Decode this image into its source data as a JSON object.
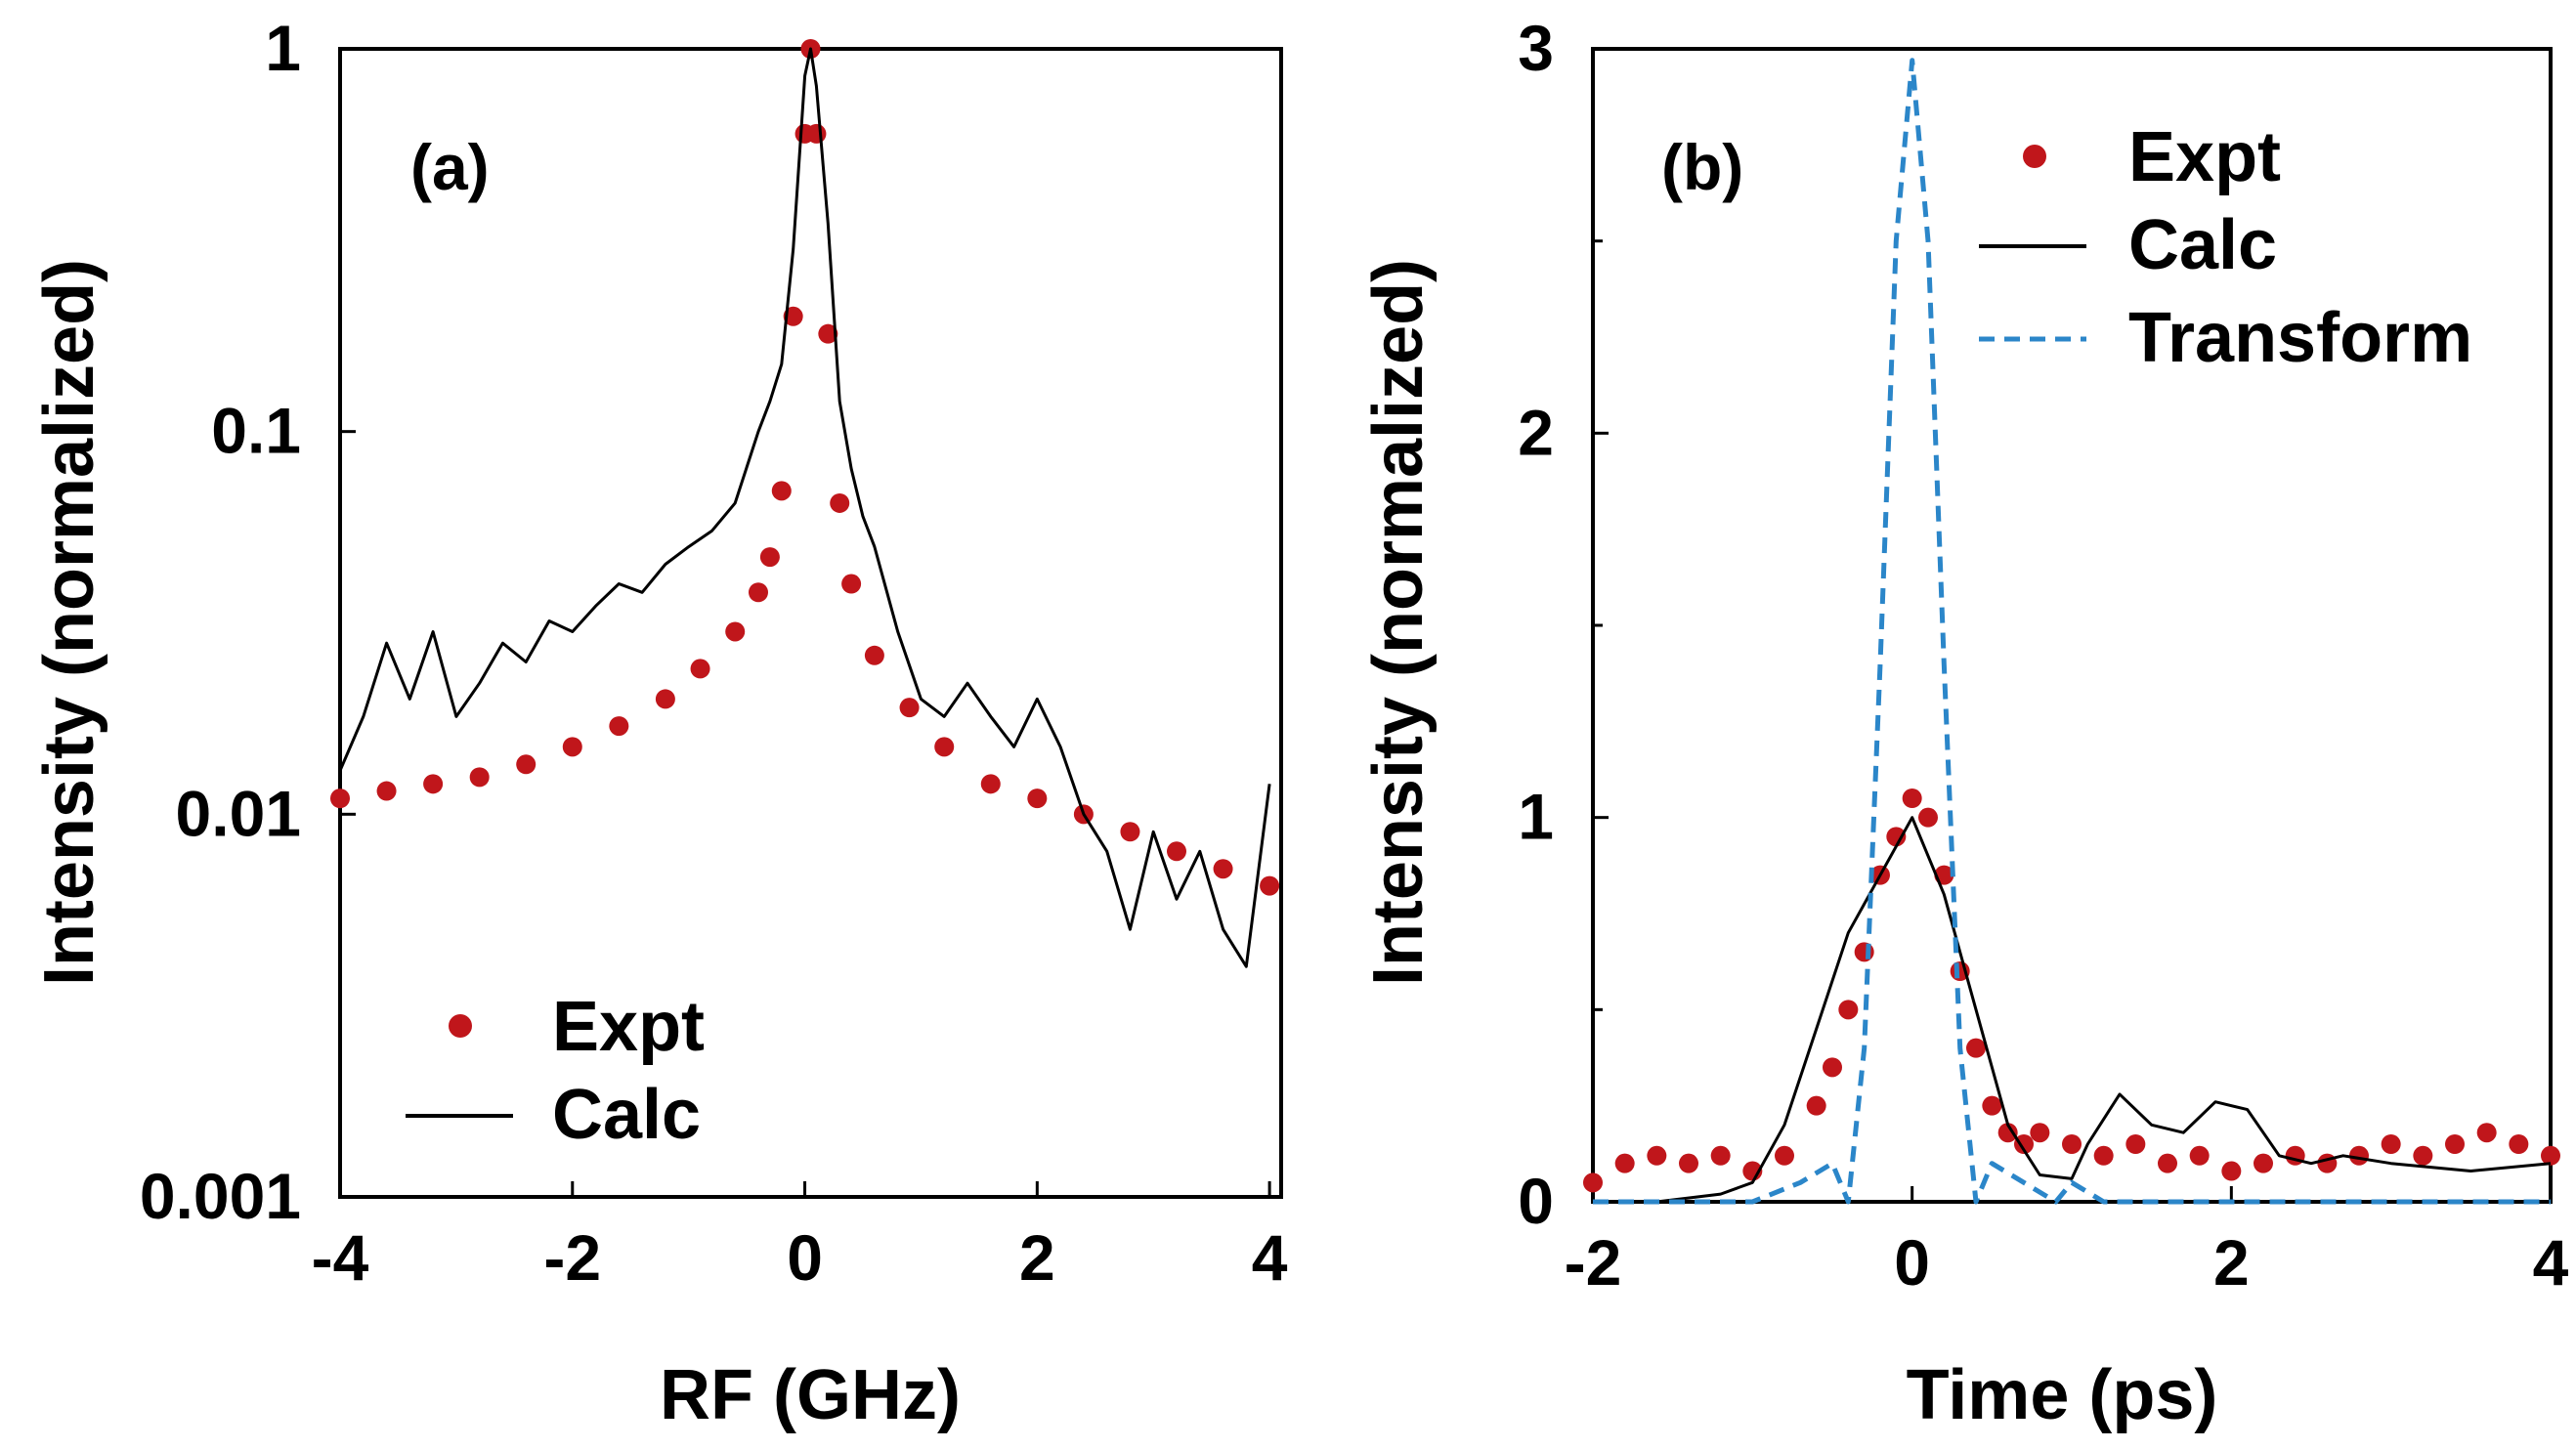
{
  "colors": {
    "expt": "#c0161b",
    "calc": "#000000",
    "transform": "#2b86c9"
  },
  "chart_data": [
    {
      "type": "line",
      "panel_label": "(a)",
      "xlabel": "RF (GHz)",
      "ylabel": "Intensity (normalized)",
      "xlim": [
        -4,
        4.1
      ],
      "ylim": [
        0.001,
        1
      ],
      "yscale": "log",
      "xticks": [
        -4,
        -2,
        0,
        2,
        4
      ],
      "xtick_labels": [
        "-4",
        "-2",
        "0",
        "2",
        "4"
      ],
      "yticks": [
        1,
        0.1,
        0.01,
        0.001
      ],
      "ytick_labels": [
        "1",
        "0.1",
        "0.01",
        "0.001"
      ],
      "legend_position": "bottom-left",
      "series": [
        {
          "name": "Expt",
          "style": "markers",
          "color": "#c0161b",
          "x": [
            -4.0,
            -3.6,
            -3.2,
            -2.8,
            -2.4,
            -2.0,
            -1.6,
            -1.2,
            -0.9,
            -0.6,
            -0.4,
            -0.3,
            -0.2,
            -0.1,
            0.0,
            0.05,
            0.1,
            0.2,
            0.3,
            0.4,
            0.6,
            0.9,
            1.2,
            1.6,
            2.0,
            2.4,
            2.8,
            3.2,
            3.6,
            4.0
          ],
          "y": [
            0.011,
            0.0115,
            0.012,
            0.0125,
            0.0135,
            0.015,
            0.017,
            0.02,
            0.024,
            0.03,
            0.038,
            0.047,
            0.07,
            0.2,
            0.6,
            1.0,
            0.6,
            0.18,
            0.065,
            0.04,
            0.026,
            0.019,
            0.015,
            0.012,
            0.011,
            0.01,
            0.009,
            0.008,
            0.0072,
            0.0065
          ]
        },
        {
          "name": "Calc",
          "style": "line",
          "color": "#000000",
          "x": [
            -4.0,
            -3.8,
            -3.6,
            -3.4,
            -3.2,
            -3.0,
            -2.8,
            -2.6,
            -2.4,
            -2.2,
            -2.0,
            -1.8,
            -1.6,
            -1.4,
            -1.2,
            -1.0,
            -0.8,
            -0.6,
            -0.4,
            -0.3,
            -0.2,
            -0.1,
            0.0,
            0.05,
            0.1,
            0.2,
            0.3,
            0.4,
            0.5,
            0.6,
            0.8,
            1.0,
            1.2,
            1.4,
            1.6,
            1.8,
            2.0,
            2.2,
            2.4,
            2.6,
            2.8,
            3.0,
            3.2,
            3.4,
            3.6,
            3.8,
            4.0
          ],
          "y": [
            0.013,
            0.018,
            0.028,
            0.02,
            0.03,
            0.018,
            0.022,
            0.028,
            0.025,
            0.032,
            0.03,
            0.035,
            0.04,
            0.038,
            0.045,
            0.05,
            0.055,
            0.065,
            0.1,
            0.12,
            0.15,
            0.3,
            0.85,
            1.0,
            0.8,
            0.35,
            0.12,
            0.08,
            0.06,
            0.05,
            0.03,
            0.02,
            0.018,
            0.022,
            0.018,
            0.015,
            0.02,
            0.015,
            0.01,
            0.008,
            0.005,
            0.009,
            0.006,
            0.008,
            0.005,
            0.004,
            0.012
          ]
        }
      ]
    },
    {
      "type": "line",
      "panel_label": "(b)",
      "xlabel": "Time (ps)",
      "ylabel": "Intensity (normalized)",
      "xlim": [
        -2,
        4
      ],
      "ylim": [
        0,
        3
      ],
      "yscale": "linear",
      "xticks": [
        -2,
        0,
        2,
        4
      ],
      "xtick_labels": [
        "-2",
        "0",
        "2",
        "4"
      ],
      "yticks": [
        0,
        1,
        2,
        3
      ],
      "ytick_labels": [
        "0",
        "1",
        "2",
        "3"
      ],
      "legend_position": "top-right",
      "series": [
        {
          "name": "Expt",
          "style": "markers",
          "color": "#c0161b",
          "x": [
            -2.0,
            -1.8,
            -1.6,
            -1.4,
            -1.2,
            -1.0,
            -0.8,
            -0.6,
            -0.5,
            -0.4,
            -0.3,
            -0.2,
            -0.1,
            0.0,
            0.1,
            0.2,
            0.3,
            0.4,
            0.5,
            0.6,
            0.7,
            0.8,
            1.0,
            1.2,
            1.4,
            1.6,
            1.8,
            2.0,
            2.2,
            2.4,
            2.6,
            2.8,
            3.0,
            3.2,
            3.4,
            3.6,
            3.8,
            4.0
          ],
          "y": [
            0.05,
            0.1,
            0.12,
            0.1,
            0.12,
            0.08,
            0.12,
            0.25,
            0.35,
            0.5,
            0.65,
            0.85,
            0.95,
            1.05,
            1.0,
            0.85,
            0.6,
            0.4,
            0.25,
            0.18,
            0.15,
            0.18,
            0.15,
            0.12,
            0.15,
            0.1,
            0.12,
            0.08,
            0.1,
            0.12,
            0.1,
            0.12,
            0.15,
            0.12,
            0.15,
            0.18,
            0.15,
            0.12
          ]
        },
        {
          "name": "Calc",
          "style": "line",
          "color": "#000000",
          "x": [
            -2.0,
            -1.6,
            -1.2,
            -1.0,
            -0.8,
            -0.6,
            -0.4,
            -0.2,
            0.0,
            0.2,
            0.4,
            0.6,
            0.8,
            1.0,
            1.1,
            1.3,
            1.5,
            1.7,
            1.9,
            2.1,
            2.3,
            2.5,
            2.7,
            3.0,
            3.5,
            4.0
          ],
          "y": [
            0.0,
            0.0,
            0.02,
            0.05,
            0.2,
            0.45,
            0.7,
            0.85,
            1.0,
            0.8,
            0.5,
            0.2,
            0.07,
            0.06,
            0.15,
            0.28,
            0.2,
            0.18,
            0.26,
            0.24,
            0.12,
            0.1,
            0.12,
            0.1,
            0.08,
            0.1
          ]
        },
        {
          "name": "Transform",
          "style": "dashed",
          "color": "#2b86c9",
          "x": [
            -2.0,
            -1.0,
            -0.7,
            -0.5,
            -0.4,
            -0.3,
            -0.2,
            -0.1,
            0.0,
            0.1,
            0.2,
            0.3,
            0.4,
            0.5,
            0.7,
            0.9,
            1.0,
            1.2,
            2.0,
            3.0,
            4.0
          ],
          "y": [
            0.0,
            0.0,
            0.05,
            0.1,
            0.0,
            0.4,
            1.4,
            2.5,
            2.97,
            2.5,
            1.4,
            0.4,
            0.0,
            0.1,
            0.05,
            0.0,
            0.05,
            0.0,
            0.0,
            0.0,
            0.0
          ]
        }
      ]
    }
  ]
}
